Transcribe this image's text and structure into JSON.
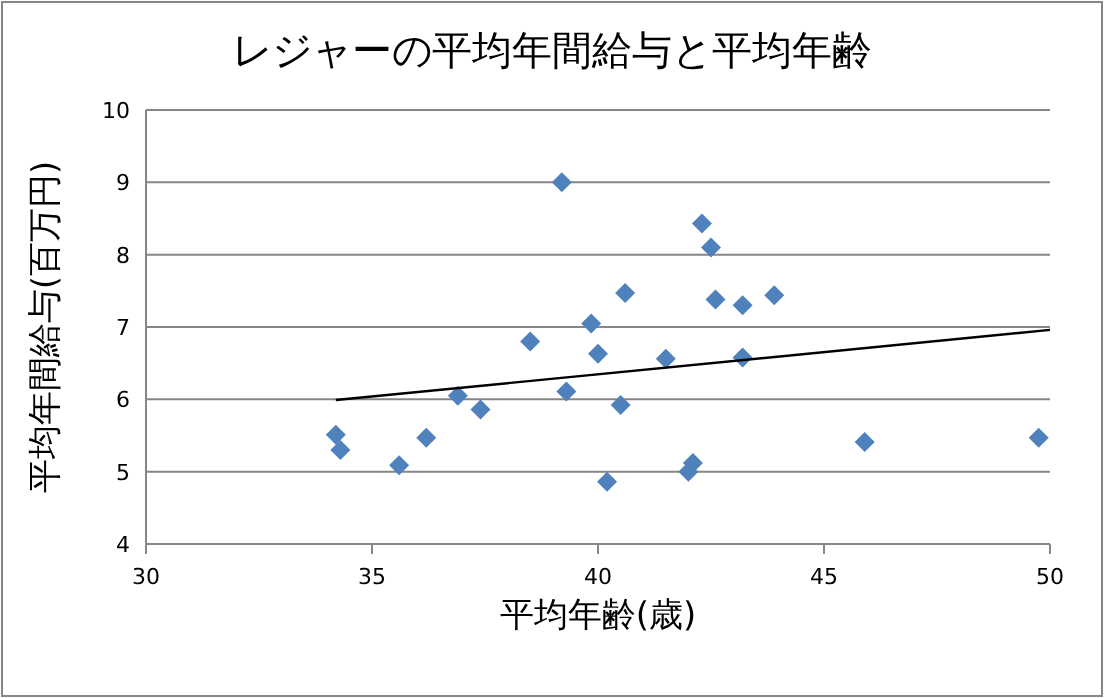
{
  "chart_data": {
    "type": "scatter",
    "title": "レジャーの平均年間給与と平均年齢",
    "xlabel": "平均年齢(歳)",
    "ylabel": "平均年間給与(百万円)",
    "xlim": [
      30,
      50
    ],
    "xticks": [
      30,
      35,
      40,
      45,
      50
    ],
    "ylim": [
      4,
      10
    ],
    "yticks": [
      4,
      5,
      6,
      7,
      8,
      9,
      10
    ],
    "grid": "y",
    "series": [
      {
        "marker": "diamond",
        "color": "#4f81bd",
        "x": [
          39.2,
          38.5,
          39.85,
          40.0,
          39.3,
          36.9,
          37.4,
          34.2,
          34.3,
          36.2,
          35.6,
          40.2,
          40.5,
          40.6,
          41.5,
          42.3,
          42.5,
          42.6,
          43.2,
          43.2,
          43.9,
          42.0,
          42.1,
          45.9,
          49.75
        ],
        "values": [
          9.0,
          6.8,
          7.05,
          6.63,
          6.11,
          6.05,
          5.86,
          5.51,
          5.3,
          5.47,
          5.09,
          4.86,
          5.92,
          7.47,
          6.56,
          8.43,
          8.1,
          7.38,
          7.3,
          6.58,
          7.44,
          5.0,
          5.12,
          5.41,
          5.47
        ]
      },
      {
        "type": "line",
        "color": "#000000",
        "x": [
          34.2,
          50
        ],
        "values": [
          5.99,
          6.96
        ]
      }
    ]
  }
}
